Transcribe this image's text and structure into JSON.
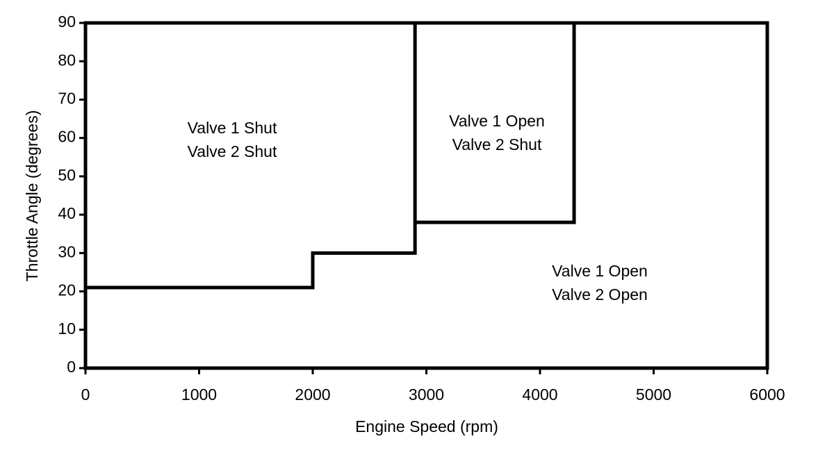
{
  "chart_data": {
    "type": "line",
    "xlabel": "Engine Speed (rpm)",
    "ylabel": "Throttle Angle (degrees)",
    "xlim": [
      0,
      6000
    ],
    "xticks": [
      0,
      1000,
      2000,
      3000,
      4000,
      5000,
      6000
    ],
    "ylim": [
      0,
      90
    ],
    "yticks": [
      0,
      10,
      20,
      30,
      40,
      50,
      60,
      70,
      80,
      90
    ],
    "color": "#000000",
    "series": [
      {
        "x": [
          0,
          2000,
          2000,
          2900,
          2900
        ],
        "values": [
          21,
          21,
          30,
          30,
          90
        ]
      },
      {
        "x": [
          2900,
          4300,
          4300
        ],
        "values": [
          38,
          38,
          90
        ]
      }
    ],
    "annotations": [
      [
        "Valve 1 Shut",
        "Valve 2 Shut"
      ],
      [
        "Valve 1 Open",
        "Valve 2 Shut"
      ],
      [
        "Valve 1 Open",
        "Valve 2 Open"
      ]
    ]
  }
}
